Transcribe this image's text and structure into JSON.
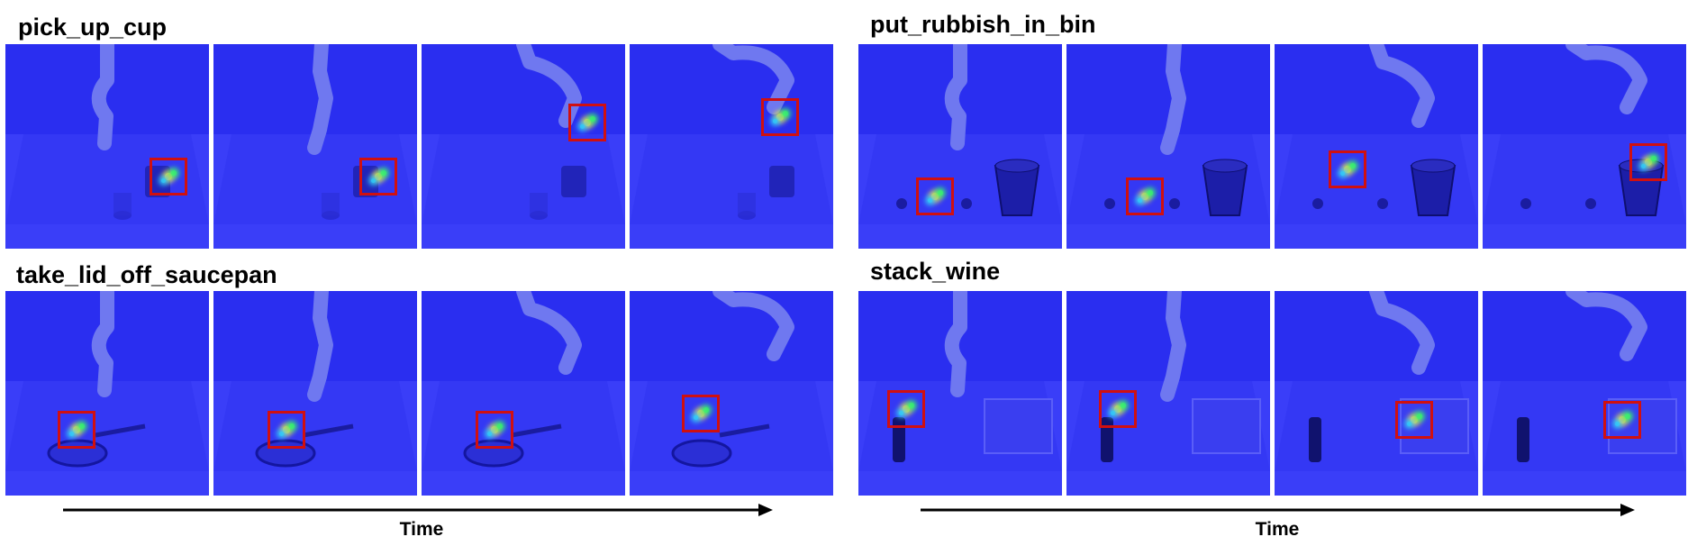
{
  "panels": [
    {
      "title": "pick_up_cup",
      "frames": 4
    },
    {
      "title": "put_rubbish_in_bin",
      "frames": 4
    },
    {
      "title": "take_lid_off_saucepan",
      "frames": 4
    },
    {
      "title": "stack_wine",
      "frames": 4
    }
  ],
  "axis_label": "Time",
  "colors": {
    "wall": "#2a2ef0",
    "floor": "#3a3ef8",
    "table": "#3337f2",
    "robot": "#6f78f0",
    "box": "#d01010"
  }
}
